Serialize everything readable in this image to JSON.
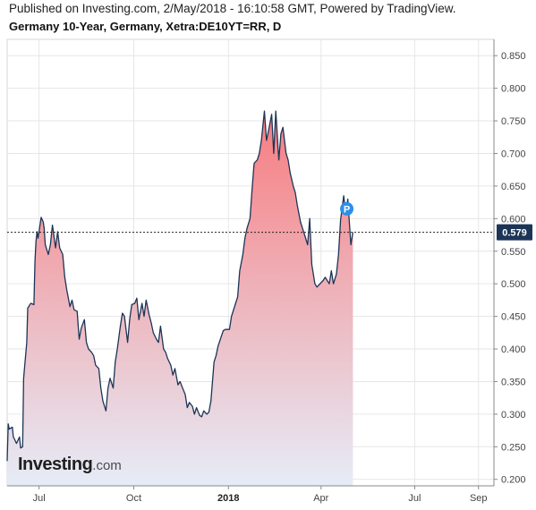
{
  "header": {
    "published": "Published on Investing.com, 2/May/2018 - 16:10:58 GMT, Powered by TradingView.",
    "title": "Germany 10-Year, Germany, Xetra:DE10YT=RR, D"
  },
  "logo": {
    "main": "Investing",
    "suffix": ".com"
  },
  "colors": {
    "line": "#1c3557",
    "fill_top": "#f77c80",
    "fill_bottom": "#e6ecf7",
    "grid": "#e6e6e6",
    "price_tag": "#1c3557",
    "marker": "#2b8fea"
  },
  "chart_data": {
    "type": "area",
    "title": "Germany 10-Year, Germany, Xetra:DE10YT=RR, D",
    "xlabel": "",
    "ylabel": "",
    "ylim": [
      0.19,
      0.875
    ],
    "xlim": [
      "2017-05-31",
      "2018-09-16"
    ],
    "grid": true,
    "y_ticks": [
      "0.200",
      "0.250",
      "0.300",
      "0.350",
      "0.400",
      "0.450",
      "0.500",
      "0.550",
      "0.600",
      "0.650",
      "0.700",
      "0.750",
      "0.800",
      "0.850"
    ],
    "x_ticks": [
      {
        "date": "2017-07-01",
        "label": "Jul",
        "bold": false
      },
      {
        "date": "2017-10-01",
        "label": "Oct",
        "bold": false
      },
      {
        "date": "2018-01-01",
        "label": "2018",
        "bold": true
      },
      {
        "date": "2018-04-01",
        "label": "Apr",
        "bold": false
      },
      {
        "date": "2018-07-01",
        "label": "Jul",
        "bold": false
      },
      {
        "date": "2018-09-01",
        "label": "Sep",
        "bold": false
      }
    ],
    "last_value": "0.579",
    "marker_label": "P",
    "marker_date": "2018-04-26",
    "marker_value": 0.615,
    "series": [
      {
        "x": [
          "2017-05-31",
          "2017-06-01",
          "2017-06-02",
          "2017-06-05",
          "2017-06-06",
          "2017-06-07",
          "2017-06-09",
          "2017-06-12",
          "2017-06-13",
          "2017-06-15",
          "2017-06-16",
          "2017-06-19",
          "2017-06-20",
          "2017-06-21",
          "2017-06-22",
          "2017-06-23",
          "2017-06-26",
          "2017-06-27",
          "2017-06-28",
          "2017-06-29",
          "2017-06-30",
          "2017-07-03",
          "2017-07-05",
          "2017-07-06",
          "2017-07-07",
          "2017-07-10",
          "2017-07-12",
          "2017-07-14",
          "2017-07-17",
          "2017-07-19",
          "2017-07-21",
          "2017-07-24",
          "2017-07-26",
          "2017-07-28",
          "2017-07-31",
          "2017-08-02",
          "2017-08-04",
          "2017-08-07",
          "2017-08-09",
          "2017-08-11",
          "2017-08-14",
          "2017-08-16",
          "2017-08-18",
          "2017-08-21",
          "2017-08-23",
          "2017-08-25",
          "2017-08-28",
          "2017-08-30",
          "2017-09-01",
          "2017-09-04",
          "2017-09-06",
          "2017-09-08",
          "2017-09-11",
          "2017-09-13",
          "2017-09-15",
          "2017-09-18",
          "2017-09-20",
          "2017-09-22",
          "2017-09-25",
          "2017-09-27",
          "2017-09-29",
          "2017-10-02",
          "2017-10-04",
          "2017-10-06",
          "2017-10-09",
          "2017-10-11",
          "2017-10-13",
          "2017-10-16",
          "2017-10-18",
          "2017-10-20",
          "2017-10-23",
          "2017-10-25",
          "2017-10-27",
          "2017-10-30",
          "2017-11-01",
          "2017-11-03",
          "2017-11-06",
          "2017-11-08",
          "2017-11-10",
          "2017-11-13",
          "2017-11-15",
          "2017-11-17",
          "2017-11-20",
          "2017-11-22",
          "2017-11-24",
          "2017-11-27",
          "2017-11-29",
          "2017-12-01",
          "2017-12-04",
          "2017-12-06",
          "2017-12-08",
          "2017-12-11",
          "2017-12-13",
          "2017-12-15",
          "2017-12-18",
          "2017-12-20",
          "2017-12-22",
          "2017-12-27",
          "2017-12-29",
          "2018-01-02",
          "2018-01-04",
          "2018-01-08",
          "2018-01-10",
          "2018-01-12",
          "2018-01-15",
          "2018-01-17",
          "2018-01-19",
          "2018-01-22",
          "2018-01-24",
          "2018-01-26",
          "2018-01-29",
          "2018-01-31",
          "2018-02-02",
          "2018-02-05",
          "2018-02-07",
          "2018-02-09",
          "2018-02-12",
          "2018-02-14",
          "2018-02-16",
          "2018-02-19",
          "2018-02-21",
          "2018-02-23",
          "2018-02-26",
          "2018-02-28",
          "2018-03-02",
          "2018-03-05",
          "2018-03-07",
          "2018-03-09",
          "2018-03-12",
          "2018-03-14",
          "2018-03-16",
          "2018-03-19",
          "2018-03-21",
          "2018-03-23",
          "2018-03-26",
          "2018-03-28",
          "2018-04-03",
          "2018-04-05",
          "2018-04-09",
          "2018-04-11",
          "2018-04-13",
          "2018-04-16",
          "2018-04-18",
          "2018-04-20",
          "2018-04-23",
          "2018-04-25",
          "2018-04-27",
          "2018-04-30",
          "2018-05-02"
        ],
        "values": [
          0.228,
          0.285,
          0.277,
          0.28,
          0.265,
          0.262,
          0.255,
          0.265,
          0.248,
          0.25,
          0.355,
          0.41,
          0.463,
          0.465,
          0.468,
          0.47,
          0.468,
          0.535,
          0.565,
          0.58,
          0.57,
          0.602,
          0.595,
          0.585,
          0.56,
          0.545,
          0.56,
          0.59,
          0.555,
          0.58,
          0.555,
          0.545,
          0.51,
          0.49,
          0.465,
          0.475,
          0.46,
          0.458,
          0.415,
          0.432,
          0.445,
          0.41,
          0.4,
          0.395,
          0.39,
          0.375,
          0.37,
          0.34,
          0.32,
          0.305,
          0.34,
          0.355,
          0.34,
          0.38,
          0.4,
          0.435,
          0.455,
          0.45,
          0.41,
          0.445,
          0.468,
          0.47,
          0.478,
          0.445,
          0.47,
          0.45,
          0.475,
          0.452,
          0.44,
          0.425,
          0.415,
          0.41,
          0.435,
          0.4,
          0.395,
          0.385,
          0.375,
          0.36,
          0.37,
          0.345,
          0.35,
          0.342,
          0.33,
          0.31,
          0.318,
          0.312,
          0.3,
          0.31,
          0.298,
          0.296,
          0.305,
          0.3,
          0.303,
          0.32,
          0.38,
          0.39,
          0.405,
          0.428,
          0.43,
          0.43,
          0.45,
          0.47,
          0.48,
          0.52,
          0.545,
          0.57,
          0.585,
          0.6,
          0.645,
          0.685,
          0.69,
          0.7,
          0.72,
          0.765,
          0.72,
          0.735,
          0.76,
          0.7,
          0.765,
          0.69,
          0.73,
          0.74,
          0.7,
          0.69,
          0.67,
          0.65,
          0.64,
          0.62,
          0.595,
          0.585,
          0.575,
          0.56,
          0.6,
          0.53,
          0.5,
          0.495,
          0.505,
          0.51,
          0.5,
          0.52,
          0.5,
          0.515,
          0.545,
          0.598,
          0.635,
          0.608,
          0.63,
          0.56,
          0.579
        ]
      }
    ]
  }
}
